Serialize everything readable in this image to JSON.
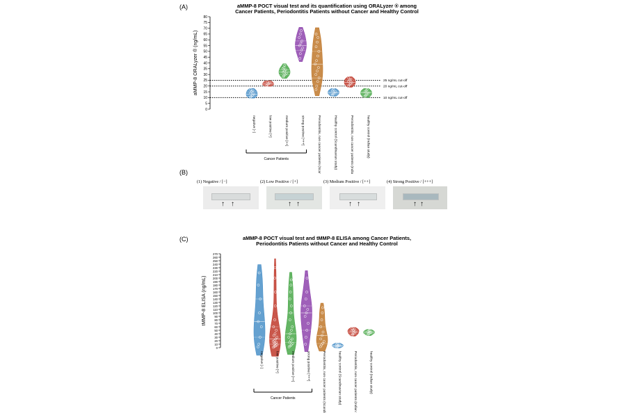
{
  "panelA": {
    "letter": "(A)",
    "title_line1": "aMMP-8 POCT visual test and its quantification using ORALyzer ® among",
    "title_line2": "Cancer Patients, Periodontitis Patients without Cancer and Healthy Control",
    "group_label": "Cancer Patients"
  },
  "panelB": {
    "letter": "(B)",
    "captions": [
      "(1)   Negative / [−]",
      "(2)  Low Positive / [+]",
      "(3)  Medium Positive / [++]",
      "(4)  Strong Positive / [+++]"
    ]
  },
  "panelC": {
    "letter": "(C)",
    "title_line1": "aMMP-8 POCT visual test and tMMP-8 ELISA among Cancer Patients,",
    "title_line2": "Periodontitis Patients without Cancer and Healthy Control",
    "group_label": "Cancer Patients"
  },
  "chart_data": [
    {
      "type": "violin",
      "title": "aMMP-8 POCT visual test and its quantification using ORALyzer ® among Cancer Patients, Periodontitis Patients without Cancer and Healthy Control",
      "ylabel": "aMMP-8 ORALyzer ® (ng/mL)",
      "ylim": [
        0,
        80
      ],
      "yticks": [
        0,
        5,
        10,
        15,
        20,
        25,
        30,
        35,
        40,
        45,
        50,
        55,
        60,
        65,
        70,
        75,
        80
      ],
      "categories": [
        "negative [−]",
        "low positive [+]",
        "medium positive [++]",
        "strong positive [+++]",
        "Periodontitis, non cancer patients (Scandinavian study)",
        "Healthy control (Scandinavian study)",
        "Periodontitis, non cancer patients (Indian Study)",
        "healthy control (Indian study)"
      ],
      "colors": [
        "#4a90c8",
        "#c0392b",
        "#4aa84a",
        "#8e44ad",
        "#c0782c",
        "#4a90c8",
        "#c0392b",
        "#4aa84a"
      ],
      "series": [
        {
          "values": [
            10.5,
            11,
            12,
            13,
            14,
            15,
            16,
            17
          ]
        },
        {
          "values": [
            20.5,
            21,
            22,
            23,
            24
          ]
        },
        {
          "values": [
            28,
            29,
            30,
            31,
            32,
            33,
            34,
            35,
            36,
            38
          ]
        },
        {
          "values": [
            44,
            48,
            51,
            53,
            55,
            57,
            59,
            62,
            65,
            68
          ]
        },
        {
          "values": [
            17,
            20,
            24,
            27,
            30,
            33,
            36,
            39,
            42,
            46,
            50,
            54,
            58,
            62,
            65
          ]
        },
        {
          "values": [
            12,
            13,
            14,
            15,
            16,
            17
          ]
        },
        {
          "values": [
            20,
            21,
            22,
            23,
            24,
            25,
            26,
            27
          ]
        },
        {
          "values": [
            11,
            12,
            13,
            14,
            15,
            16,
            17
          ]
        }
      ],
      "cutoffs": [
        {
          "value": 25,
          "label": "25 ng/mL cut-off"
        },
        {
          "value": 20,
          "label": "20 ng/mL cut-off"
        },
        {
          "value": 10,
          "label": "10 ng/mL cut-off"
        }
      ],
      "group_bracket": {
        "label": "Cancer Patients",
        "from": 0,
        "to": 3
      }
    },
    {
      "type": "violin",
      "title": "aMMP-8 POCT visual test and tMMP-8 ELISA among Cancer Patients, Periodontitis Patients without Cancer and Healthy Control",
      "ylabel": "tMMP-8 ELISA (ng/mL)",
      "ylim": [
        0,
        270
      ],
      "yticks": [
        0,
        10,
        20,
        30,
        40,
        50,
        60,
        70,
        80,
        90,
        100,
        110,
        120,
        130,
        140,
        150,
        160,
        170,
        180,
        190,
        200,
        210,
        220,
        230,
        240,
        250,
        260,
        270
      ],
      "categories": [
        "negative [−]",
        "low positive [+]",
        "medium positive [++]",
        "strong positive [+++]",
        "Periodontitis, non cancer patients (Scandinavian study)",
        "healthy control (Scandinavian study)",
        "Periodontitis, non cancer patients (Indian Study)",
        "healthy control (Indian study)"
      ],
      "colors": [
        "#4a90c8",
        "#c0392b",
        "#4aa84a",
        "#8e44ad",
        "#c0782c",
        "#4a90c8",
        "#c0392b",
        "#4aa84a"
      ],
      "series": [
        {
          "values": [
            2,
            10,
            30,
            60,
            75,
            100,
            140,
            180,
            215
          ]
        },
        {
          "values": [
            1,
            3,
            5,
            8,
            10,
            12,
            15,
            18,
            20,
            25,
            30,
            35,
            40,
            50,
            60,
            80,
            120,
            160,
            200,
            230
          ]
        },
        {
          "values": [
            2,
            5,
            8,
            12,
            15,
            20,
            25,
            30,
            40,
            50,
            60,
            80,
            100,
            120,
            140,
            160,
            180,
            195
          ]
        },
        {
          "values": [
            10,
            30,
            50,
            70,
            90,
            100,
            110,
            120,
            140,
            160,
            200
          ]
        },
        {
          "values": [
            3,
            8,
            12,
            18,
            25,
            35,
            45,
            60,
            80,
            100,
            115
          ]
        },
        {
          "values": [
            1,
            3,
            5,
            7,
            9,
            11
          ]
        },
        {
          "values": [
            36,
            39,
            42,
            45,
            48,
            50,
            53,
            55
          ]
        },
        {
          "values": [
            37,
            40,
            42,
            44,
            46,
            48,
            50
          ]
        }
      ],
      "group_bracket": {
        "label": "Cancer Patients",
        "from": 0,
        "to": 3
      }
    }
  ],
  "icons": {
    "arrow": "up-arrow-icon"
  }
}
